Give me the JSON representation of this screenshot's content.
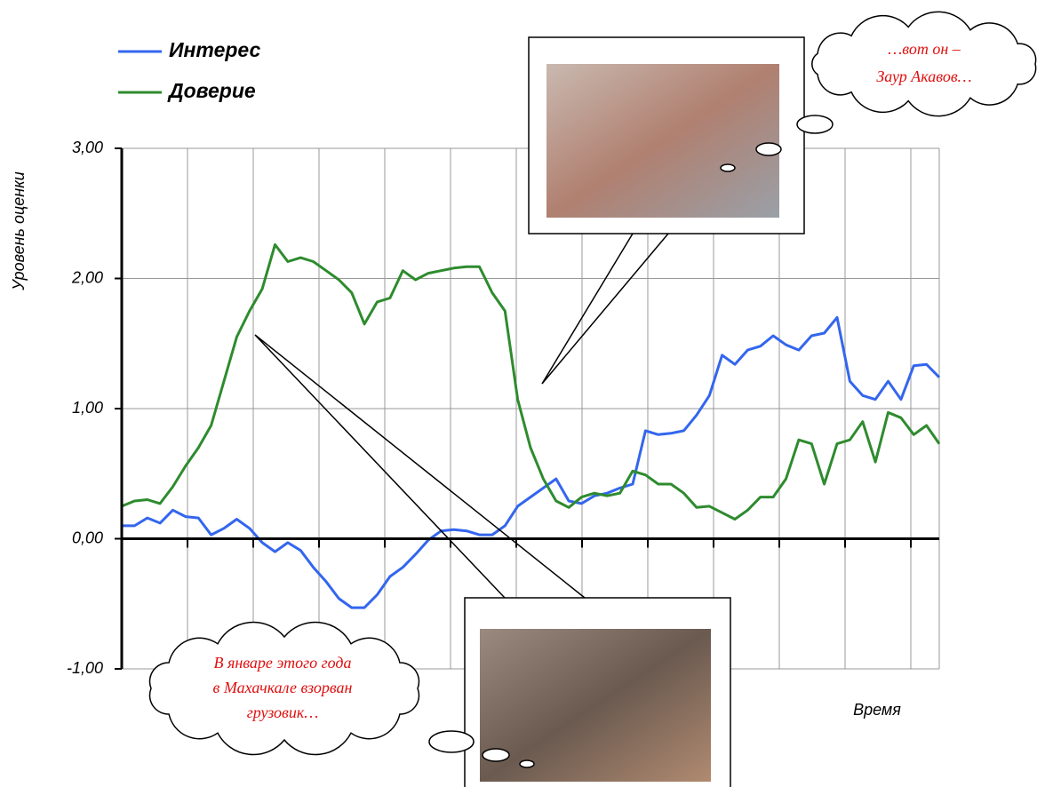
{
  "chart_data": {
    "type": "line",
    "series": [
      {
        "name": "Интерес",
        "color": "#3366ee",
        "values": [
          0.1,
          0.1,
          0.16,
          0.12,
          0.22,
          0.17,
          0.16,
          0.03,
          0.08,
          0.15,
          0.08,
          -0.03,
          -0.1,
          -0.03,
          -0.09,
          -0.22,
          -0.33,
          -0.46,
          -0.53,
          -0.53,
          -0.43,
          -0.29,
          -0.22,
          -0.12,
          -0.01,
          0.06,
          0.07,
          0.06,
          0.03,
          0.03,
          0.1,
          0.25,
          0.32,
          0.39,
          0.46,
          0.29,
          0.27,
          0.33,
          0.35,
          0.39,
          0.42,
          0.83,
          0.8,
          0.81,
          0.83,
          0.95,
          1.1,
          1.41,
          1.34,
          1.45,
          1.48,
          1.56,
          1.49,
          1.45,
          1.56,
          1.58,
          1.7,
          1.21,
          1.1,
          1.07,
          1.21,
          1.07,
          1.33,
          1.34,
          1.24
        ]
      },
      {
        "name": "Доверие",
        "color": "#2e8b2e",
        "values": [
          0.25,
          0.29,
          0.3,
          0.27,
          0.4,
          0.56,
          0.7,
          0.87,
          1.21,
          1.55,
          1.75,
          1.92,
          2.26,
          2.13,
          2.16,
          2.13,
          2.06,
          1.99,
          1.89,
          1.65,
          1.82,
          1.85,
          2.06,
          1.99,
          2.04,
          2.06,
          2.08,
          2.09,
          2.09,
          1.89,
          1.75,
          1.07,
          0.7,
          0.46,
          0.29,
          0.24,
          0.32,
          0.35,
          0.33,
          0.35,
          0.52,
          0.49,
          0.42,
          0.42,
          0.35,
          0.24,
          0.25,
          0.2,
          0.15,
          0.22,
          0.32,
          0.32,
          0.46,
          0.76,
          0.73,
          0.42,
          0.73,
          0.76,
          0.9,
          0.59,
          0.97,
          0.93,
          0.8,
          0.87,
          0.73
        ]
      }
    ],
    "ylim": [
      -1,
      3
    ],
    "yticks": [
      {
        "value": -1,
        "label": "-1,00"
      },
      {
        "value": 0,
        "label": "0,00"
      },
      {
        "value": 1,
        "label": "1,00"
      },
      {
        "value": 2,
        "label": "2,00"
      },
      {
        "value": 3,
        "label": "3,00"
      }
    ],
    "y_label": "Уровень оценки",
    "x_label": "Время",
    "grid": true,
    "annotations": [
      "…вот он –",
      "Заур Акавов…",
      "В январе этого года",
      "в Махачкале взорван",
      "грузовик…"
    ]
  }
}
